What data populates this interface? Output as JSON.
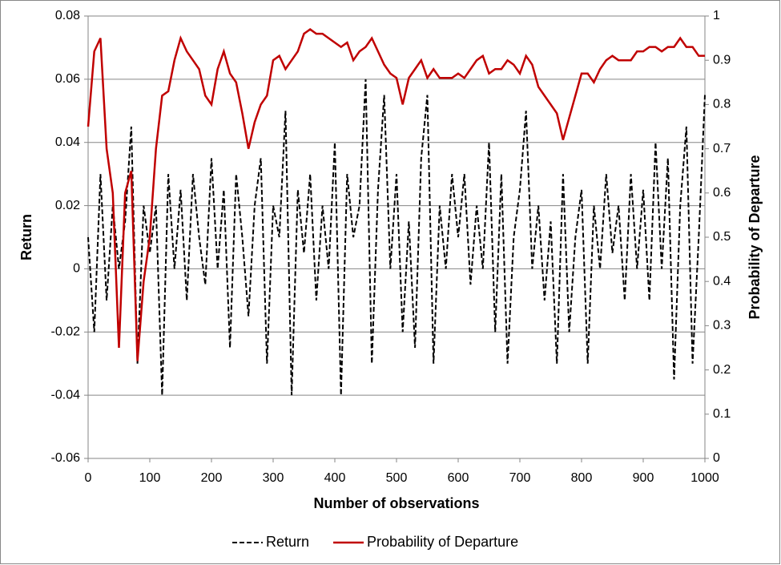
{
  "chart_data": {
    "type": "line",
    "x_label": "Number of observations",
    "y_label": "Return",
    "y2_label": "Probability of Departure",
    "x": [
      0,
      10,
      20,
      30,
      40,
      50,
      60,
      70,
      80,
      90,
      100,
      110,
      120,
      130,
      140,
      150,
      160,
      170,
      180,
      190,
      200,
      210,
      220,
      230,
      240,
      250,
      260,
      270,
      280,
      290,
      300,
      310,
      320,
      330,
      340,
      350,
      360,
      370,
      380,
      390,
      400,
      410,
      420,
      430,
      440,
      450,
      460,
      470,
      480,
      490,
      500,
      510,
      520,
      530,
      540,
      550,
      560,
      570,
      580,
      590,
      600,
      610,
      620,
      630,
      640,
      650,
      660,
      670,
      680,
      690,
      700,
      710,
      720,
      730,
      740,
      750,
      760,
      770,
      780,
      790,
      800,
      810,
      820,
      830,
      840,
      850,
      860,
      870,
      880,
      890,
      900,
      910,
      920,
      930,
      940,
      950,
      960,
      970,
      980,
      990,
      1000
    ],
    "series": [
      {
        "name": "Return",
        "color": "#000000",
        "dash": true,
        "values": [
          0.01,
          -0.02,
          0.03,
          -0.01,
          0.02,
          0.0,
          0.015,
          0.045,
          -0.03,
          0.02,
          0.005,
          0.02,
          -0.04,
          0.03,
          0.0,
          0.025,
          -0.01,
          0.03,
          0.01,
          -0.005,
          0.035,
          0.0,
          0.025,
          -0.025,
          0.03,
          0.01,
          -0.015,
          0.02,
          0.035,
          -0.03,
          0.02,
          0.01,
          0.05,
          -0.04,
          0.025,
          0.005,
          0.03,
          -0.01,
          0.02,
          0.0,
          0.04,
          -0.04,
          0.03,
          0.01,
          0.02,
          0.06,
          -0.03,
          0.025,
          0.055,
          0.0,
          0.03,
          -0.02,
          0.015,
          -0.025,
          0.035,
          0.055,
          -0.03,
          0.02,
          0.0,
          0.03,
          0.01,
          0.03,
          -0.005,
          0.02,
          0.0,
          0.04,
          -0.02,
          0.03,
          -0.03,
          0.01,
          0.025,
          0.05,
          0.0,
          0.02,
          -0.01,
          0.015,
          -0.03,
          0.03,
          -0.02,
          0.01,
          0.025,
          -0.03,
          0.02,
          0.0,
          0.03,
          0.005,
          0.02,
          -0.01,
          0.03,
          0.0,
          0.025,
          -0.01,
          0.04,
          0.0,
          0.035,
          -0.035,
          0.02,
          0.045,
          -0.03,
          0.01,
          0.055
        ]
      },
      {
        "name": "Probability of Departure",
        "color": "#c00000",
        "axis": "y2",
        "values": [
          0.75,
          0.92,
          0.95,
          0.7,
          0.6,
          0.25,
          0.6,
          0.65,
          0.22,
          0.4,
          0.5,
          0.7,
          0.82,
          0.83,
          0.9,
          0.95,
          0.92,
          0.9,
          0.88,
          0.82,
          0.8,
          0.88,
          0.92,
          0.87,
          0.85,
          0.78,
          0.7,
          0.76,
          0.8,
          0.82,
          0.9,
          0.91,
          0.88,
          0.9,
          0.92,
          0.96,
          0.97,
          0.96,
          0.96,
          0.95,
          0.94,
          0.93,
          0.94,
          0.9,
          0.92,
          0.93,
          0.95,
          0.92,
          0.89,
          0.87,
          0.86,
          0.8,
          0.86,
          0.88,
          0.9,
          0.86,
          0.88,
          0.86,
          0.86,
          0.86,
          0.87,
          0.86,
          0.88,
          0.9,
          0.91,
          0.87,
          0.88,
          0.88,
          0.9,
          0.89,
          0.87,
          0.91,
          0.89,
          0.84,
          0.82,
          0.8,
          0.78,
          0.72,
          0.77,
          0.82,
          0.87,
          0.87,
          0.85,
          0.88,
          0.9,
          0.91,
          0.9,
          0.9,
          0.9,
          0.92,
          0.92,
          0.93,
          0.93,
          0.92,
          0.93,
          0.93,
          0.95,
          0.93,
          0.93,
          0.91,
          0.91
        ]
      }
    ],
    "xlim": [
      0,
      1000
    ],
    "xticks": [
      0,
      100,
      200,
      300,
      400,
      500,
      600,
      700,
      800,
      900,
      1000
    ],
    "ylim": [
      -0.06,
      0.08
    ],
    "yticks": [
      -0.06,
      -0.04,
      -0.02,
      0,
      0.02,
      0.04,
      0.06,
      0.08
    ],
    "y2lim": [
      0,
      1
    ],
    "y2ticks": [
      0,
      0.1,
      0.2,
      0.3,
      0.4,
      0.5,
      0.6,
      0.7,
      0.8,
      0.9,
      1
    ],
    "grid": true,
    "legend": "bottom"
  }
}
